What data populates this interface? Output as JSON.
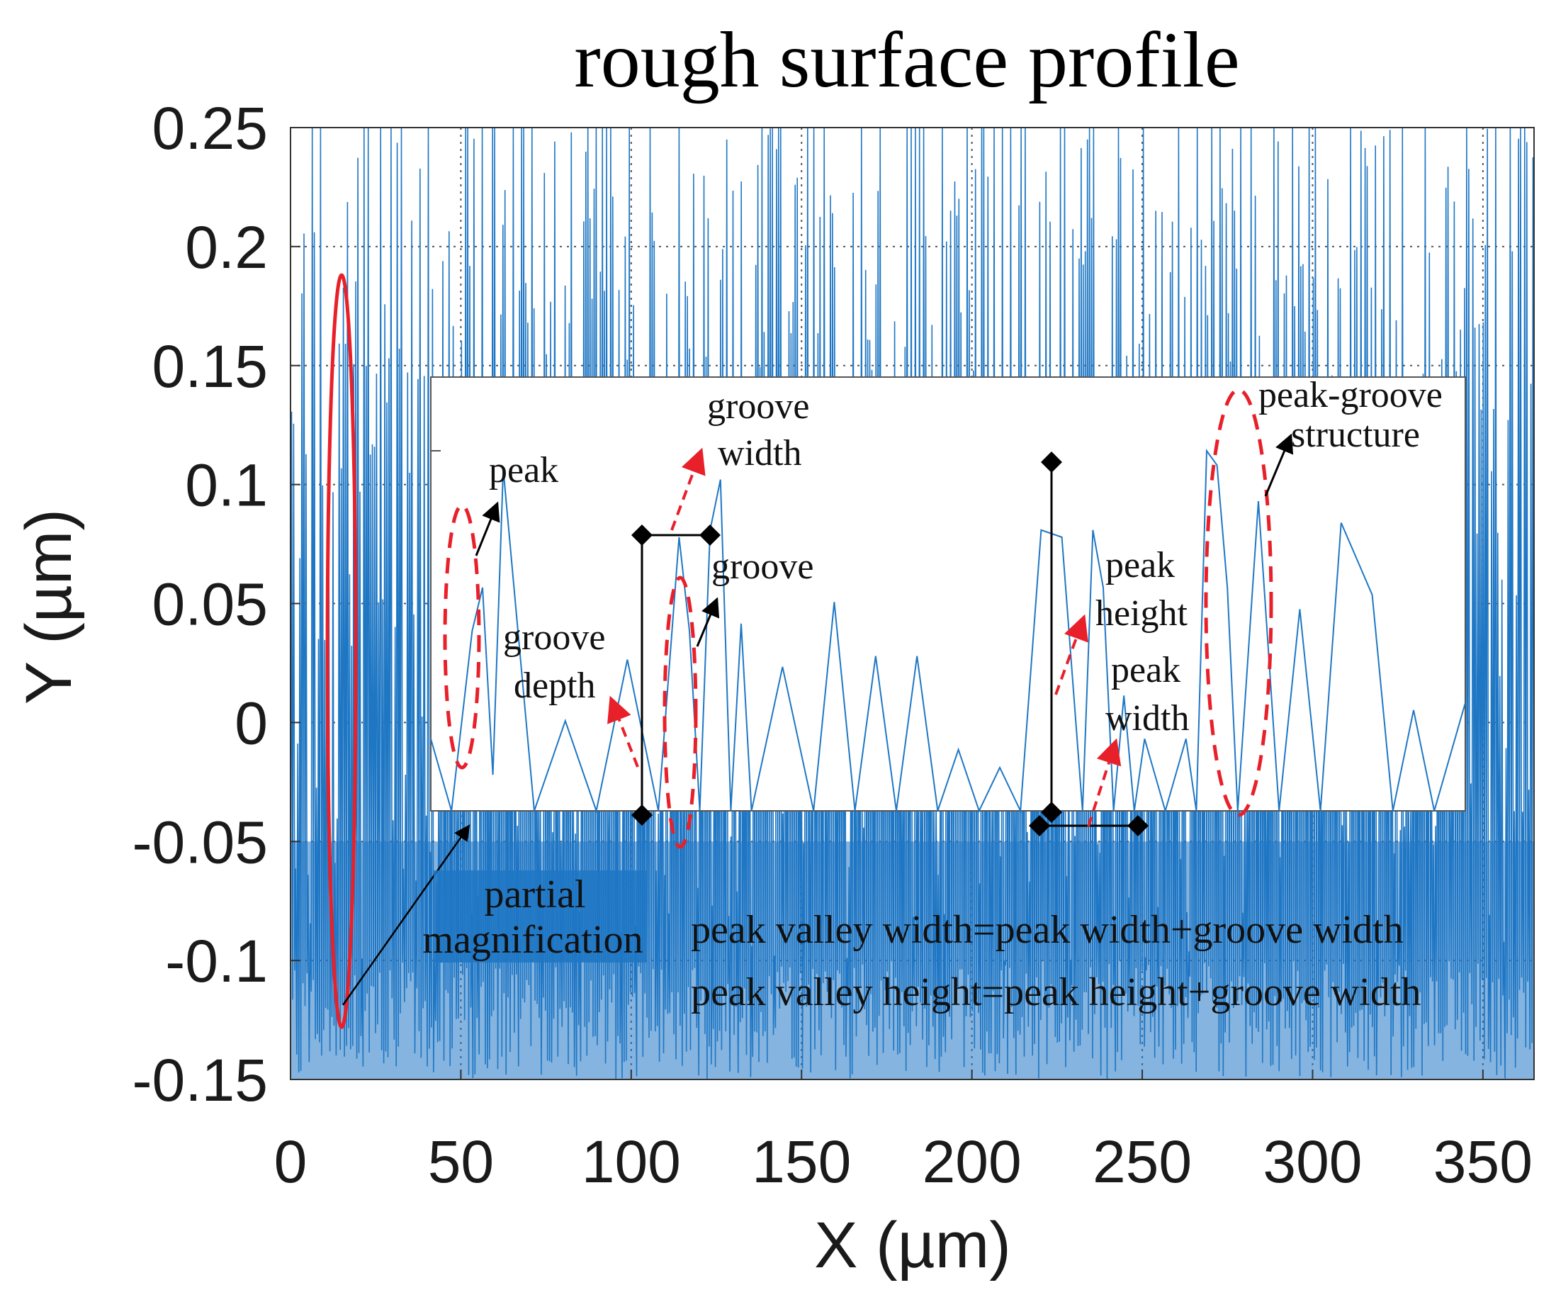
{
  "chart_data": {
    "type": "line",
    "title": "rough surface profile",
    "xlabel": "X (µm)",
    "ylabel": "Y (µm)",
    "xlim": [
      0,
      365
    ],
    "ylim": [
      -0.15,
      0.25
    ],
    "x_ticks": [
      0,
      50,
      100,
      150,
      200,
      250,
      300,
      350
    ],
    "x_tick_labels": [
      "0",
      "50",
      "100",
      "150",
      "200",
      "250",
      "300",
      "350"
    ],
    "y_ticks": [
      -0.15,
      -0.1,
      -0.05,
      0,
      0.05,
      0.1,
      0.15,
      0.2,
      0.25
    ],
    "y_tick_labels": [
      "-0.15",
      "-0.1",
      "-0.05",
      "0",
      "0.05",
      "0.1",
      "0.15",
      "0.2",
      "0.25"
    ],
    "grid": "dotted",
    "series": [
      {
        "name": "rough surface profile",
        "color": "#1f77c4",
        "x_start": 0,
        "x_end": 365,
        "sample_count": 1200,
        "y_min": -0.15,
        "y_max": 0.25,
        "seed": 7
      }
    ],
    "highlight": {
      "name": "magnified region",
      "x_center": 15,
      "y_range": [
        -0.128,
        0.188
      ],
      "color": "#e8202a"
    },
    "inset": {
      "name": "partial magnification",
      "x": [
        0,
        2,
        4,
        5,
        6,
        7,
        10,
        13,
        16,
        19,
        22,
        24,
        25,
        26,
        27,
        28,
        29,
        30,
        31,
        34,
        37,
        39,
        41,
        43,
        45,
        47,
        49,
        51,
        53,
        55,
        57,
        59,
        61,
        63,
        64,
        65,
        66,
        67,
        68,
        69,
        71,
        73,
        74,
        75,
        76,
        77,
        78,
        80,
        82,
        84,
        86,
        88,
        91,
        93,
        95,
        97,
        100
      ],
      "y": [
        0.2,
        0.0,
        0.5,
        0.62,
        0.1,
        0.95,
        0.0,
        0.25,
        0.0,
        0.42,
        0.0,
        0.76,
        0.5,
        0.0,
        0.78,
        0.92,
        0.0,
        0.52,
        0.0,
        0.4,
        0.0,
        0.58,
        0.0,
        0.43,
        0.0,
        0.43,
        0.0,
        0.17,
        0.0,
        0.12,
        0.0,
        0.78,
        0.76,
        0.0,
        0.78,
        0.62,
        0.0,
        0.32,
        0.0,
        0.2,
        0.0,
        0.2,
        0.0,
        1.0,
        0.96,
        0.62,
        0.0,
        0.86,
        0.0,
        0.56,
        0.0,
        0.8,
        0.6,
        0.0,
        0.28,
        0.0,
        0.3
      ],
      "ymax_marker": 1.0
    },
    "annotations": {
      "peak": "peak",
      "groove_width_1": "groove",
      "groove_width_2": "width",
      "groove": "groove",
      "groove_depth_1": "groove",
      "groove_depth_2": "depth",
      "peak_height_1": "peak",
      "peak_height_2": "height",
      "peak_width_1": "peak",
      "peak_width_2": "width",
      "peak_groove_1": "peak-groove",
      "peak_groove_2": "structure",
      "partial_mag_1": "partial",
      "partial_mag_2": "magnification",
      "formula_1": "peak valley width=peak width+groove width",
      "formula_2": "peak valley height=peak height+groove width"
    }
  }
}
